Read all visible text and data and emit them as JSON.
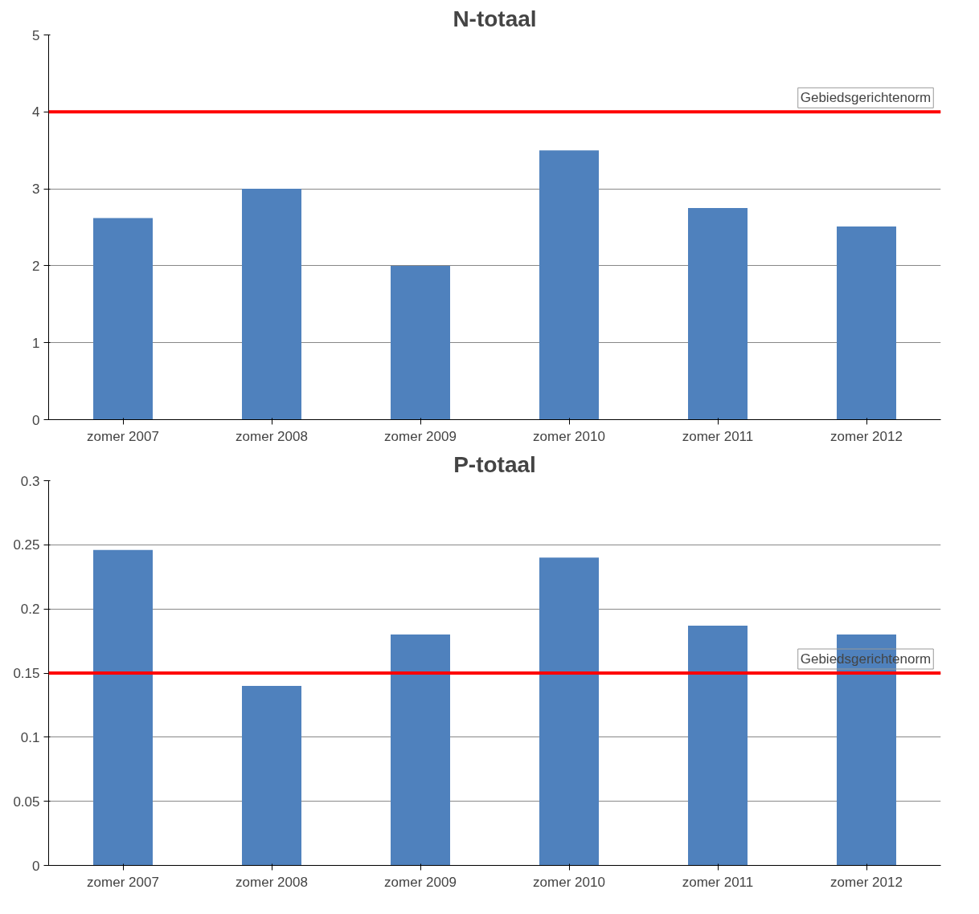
{
  "chart_data": [
    {
      "type": "bar",
      "title": "N-totaal",
      "categories": [
        "zomer 2007",
        "zomer 2008",
        "zomer 2009",
        "zomer 2010",
        "zomer 2011",
        "zomer 2012"
      ],
      "values": [
        2.62,
        3.0,
        2.0,
        3.5,
        2.75,
        2.51
      ],
      "color": "#4f81bd",
      "ylim": [
        0,
        5
      ],
      "yticks": [
        0,
        1,
        2,
        3,
        4,
        5
      ],
      "grid": "y",
      "ref_lines": [
        {
          "axis": "y",
          "value": 4,
          "label": "Gebiedsgerichtenorm",
          "color": "#ff0000"
        }
      ]
    },
    {
      "type": "bar",
      "title": "P-totaal",
      "categories": [
        "zomer 2007",
        "zomer 2008",
        "zomer 2009",
        "zomer 2010",
        "zomer 2011",
        "zomer 2012"
      ],
      "values": [
        0.246,
        0.14,
        0.18,
        0.24,
        0.187,
        0.18
      ],
      "color": "#4f81bd",
      "ylim": [
        0,
        0.3
      ],
      "yticks": [
        0,
        0.05,
        0.1,
        0.15,
        0.2,
        0.25,
        0.3
      ],
      "grid": "y",
      "ref_lines": [
        {
          "axis": "y",
          "value": 0.15,
          "label": "Gebiedsgerichtenorm",
          "color": "#ff0000"
        }
      ]
    }
  ]
}
